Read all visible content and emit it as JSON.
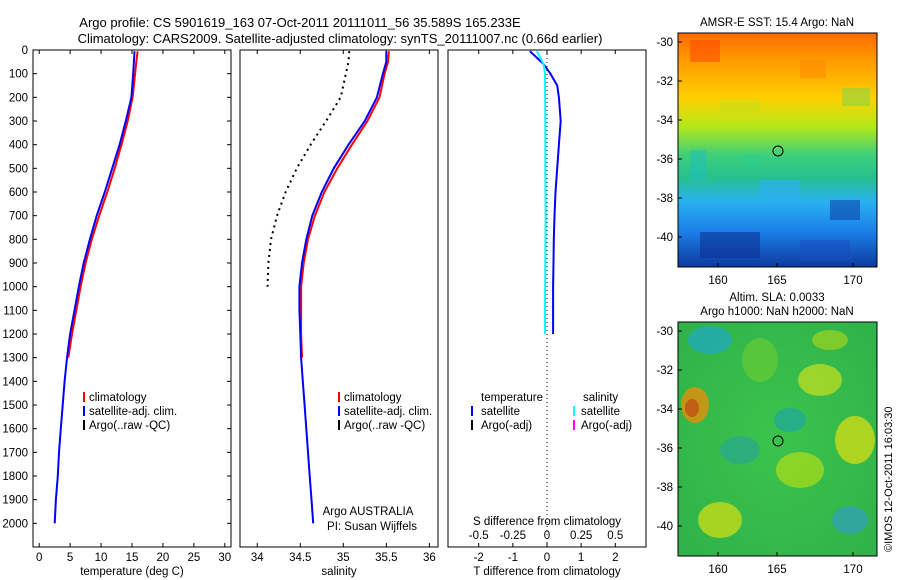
{
  "header": {
    "title_line1": "Argo profile: CS 5901619_163 07-Oct-2011 20111011_56 35.589S 165.233E",
    "title_line2": "Climatology: CARS2009. Satellite-adjusted climatology: synTS_20111007.nc (0.66d earlier)"
  },
  "credit": "©IMOS 12-Oct-2011 16:03:30",
  "colors": {
    "climatology": "#ff0000",
    "satellite": "#0000ff",
    "argo": "#000000",
    "sal_satellite": "#00ffff",
    "sal_argo": "#ff00ff"
  },
  "chart_data": [
    {
      "id": "temperature",
      "type": "line",
      "xlabel": "temperature (deg C)",
      "ylabel": "",
      "xlim": [
        -1,
        31
      ],
      "ylim": [
        2100,
        0
      ],
      "xticks": [
        0,
        5,
        10,
        15,
        20,
        25,
        30
      ],
      "yticks": [
        0,
        100,
        200,
        300,
        400,
        500,
        600,
        700,
        800,
        900,
        1000,
        1100,
        1200,
        1300,
        1400,
        1500,
        1600,
        1700,
        1800,
        1900,
        2000
      ],
      "legend": [
        "climatology",
        "satellite-adj. clim.",
        "Argo(..raw -QC)"
      ],
      "series": [
        {
          "name": "climatology",
          "color": "#ff0000",
          "points": [
            [
              15.9,
              5
            ],
            [
              15.7,
              50
            ],
            [
              15.5,
              100
            ],
            [
              15.1,
              200
            ],
            [
              14.3,
              300
            ],
            [
              13.3,
              400
            ],
            [
              12.2,
              500
            ],
            [
              11.0,
              600
            ],
            [
              9.7,
              700
            ],
            [
              8.5,
              800
            ],
            [
              7.5,
              900
            ],
            [
              6.7,
              1000
            ],
            [
              6.0,
              1100
            ],
            [
              5.3,
              1200
            ],
            [
              4.7,
              1300
            ]
          ]
        },
        {
          "name": "satellite-adj. clim.",
          "color": "#0000ff",
          "points": [
            [
              15.4,
              5
            ],
            [
              15.3,
              50
            ],
            [
              15.2,
              100
            ],
            [
              14.9,
              200
            ],
            [
              14.0,
              300
            ],
            [
              13.0,
              400
            ],
            [
              11.8,
              500
            ],
            [
              10.6,
              600
            ],
            [
              9.3,
              700
            ],
            [
              8.2,
              800
            ],
            [
              7.2,
              900
            ],
            [
              6.4,
              1000
            ],
            [
              5.7,
              1100
            ],
            [
              5.0,
              1200
            ],
            [
              4.5,
              1300
            ],
            [
              4.1,
              1400
            ],
            [
              3.8,
              1500
            ],
            [
              3.5,
              1600
            ],
            [
              3.2,
              1700
            ],
            [
              3.0,
              1800
            ],
            [
              2.7,
              1900
            ],
            [
              2.5,
              2000
            ]
          ]
        }
      ]
    },
    {
      "id": "salinity",
      "type": "line",
      "xlabel": "salinity",
      "ylabel": "",
      "xlim": [
        33.8,
        36.1
      ],
      "ylim": [
        2100,
        0
      ],
      "xticks": [
        34,
        34.5,
        35,
        35.5,
        36
      ],
      "yticks": [
        0,
        100,
        200,
        300,
        400,
        500,
        600,
        700,
        800,
        900,
        1000,
        1100,
        1200,
        1300,
        1400,
        1500,
        1600,
        1700,
        1800,
        1900,
        2000
      ],
      "legend": [
        "climatology",
        "satellite-adj. clim.",
        "Argo(..raw -QC)"
      ],
      "annotation": [
        "Argo AUSTRALIA",
        "PI: Susan Wijffels"
      ],
      "series": [
        {
          "name": "climatology",
          "color": "#ff0000",
          "points": [
            [
              35.53,
              5
            ],
            [
              35.52,
              50
            ],
            [
              35.48,
              100
            ],
            [
              35.42,
              200
            ],
            [
              35.28,
              300
            ],
            [
              35.1,
              400
            ],
            [
              34.93,
              500
            ],
            [
              34.78,
              600
            ],
            [
              34.67,
              700
            ],
            [
              34.59,
              800
            ],
            [
              34.54,
              900
            ],
            [
              34.51,
              1000
            ],
            [
              34.51,
              1100
            ],
            [
              34.51,
              1200
            ],
            [
              34.52,
              1300
            ]
          ]
        },
        {
          "name": "satellite-adj. clim.",
          "color": "#0000ff",
          "points": [
            [
              35.5,
              5
            ],
            [
              35.5,
              50
            ],
            [
              35.46,
              100
            ],
            [
              35.39,
              200
            ],
            [
              35.25,
              300
            ],
            [
              35.06,
              400
            ],
            [
              34.89,
              500
            ],
            [
              34.75,
              600
            ],
            [
              34.64,
              700
            ],
            [
              34.57,
              800
            ],
            [
              34.52,
              900
            ],
            [
              34.49,
              1000
            ],
            [
              34.49,
              1100
            ],
            [
              34.5,
              1200
            ],
            [
              34.51,
              1300
            ],
            [
              34.53,
              1400
            ],
            [
              34.55,
              1500
            ],
            [
              34.57,
              1600
            ],
            [
              34.59,
              1700
            ],
            [
              34.61,
              1800
            ],
            [
              34.63,
              1900
            ],
            [
              34.65,
              2000
            ]
          ]
        },
        {
          "name": "Argo(..raw -QC)",
          "color": "#000000",
          "style": "dotted",
          "points": [
            [
              35.07,
              5
            ],
            [
              35.06,
              50
            ],
            [
              35.03,
              100
            ],
            [
              34.97,
              200
            ],
            [
              34.8,
              300
            ],
            [
              34.62,
              400
            ],
            [
              34.46,
              500
            ],
            [
              34.33,
              600
            ],
            [
              34.23,
              700
            ],
            [
              34.16,
              800
            ],
            [
              34.13,
              900
            ],
            [
              34.12,
              1000
            ]
          ]
        }
      ]
    },
    {
      "id": "difference",
      "type": "line",
      "xlabel": "T difference from climatology",
      "xlabel2": "S difference from climatology",
      "ylabel": "",
      "xlim": [
        -2.9,
        2.9
      ],
      "ylim": [
        2100,
        0
      ],
      "xticks": [
        -2,
        -1,
        0,
        1,
        2
      ],
      "xticks_top": [
        "-0.5",
        "-0.25",
        "0",
        "0.25",
        "0.5"
      ],
      "legend_left_title": "temperature",
      "legend_right_title": "salinity",
      "legend": [
        "satellite",
        "Argo(-adj)",
        "satellite",
        "Argo(-adj)"
      ],
      "series": [
        {
          "name": "satellite",
          "color": "#0000ff",
          "points": [
            [
              -0.5,
              5
            ],
            [
              -0.1,
              60
            ],
            [
              0.1,
              100
            ],
            [
              0.3,
              150
            ],
            [
              0.35,
              200
            ],
            [
              0.4,
              300
            ],
            [
              0.35,
              400
            ],
            [
              0.3,
              500
            ],
            [
              0.25,
              600
            ],
            [
              0.22,
              700
            ],
            [
              0.2,
              800
            ],
            [
              0.19,
              900
            ],
            [
              0.18,
              1000
            ],
            [
              0.18,
              1100
            ],
            [
              0.18,
              1200
            ]
          ]
        },
        {
          "name": "satellite",
          "color": "#00ffff",
          "points": [
            [
              -0.3,
              5
            ],
            [
              -0.1,
              60
            ],
            [
              -0.06,
              100
            ],
            [
              -0.05,
              300
            ],
            [
              -0.05,
              500
            ],
            [
              -0.04,
              700
            ],
            [
              -0.05,
              900
            ],
            [
              -0.06,
              1100
            ],
            [
              -0.06,
              1200
            ]
          ]
        }
      ]
    }
  ],
  "maps": {
    "top_title": "AMSR-E SST: 15.4  Argo: NaN",
    "bottom_title_1": "Altim. SLA: 0.0033",
    "bottom_title_2": "Argo h1000: NaN h2000: NaN",
    "xticks": [
      "160",
      "165",
      "170"
    ],
    "yticks": [
      "-30",
      "-32",
      "-34",
      "-36",
      "-38",
      "-40"
    ],
    "marker_lon": 165.233,
    "marker_lat": -35.589
  }
}
